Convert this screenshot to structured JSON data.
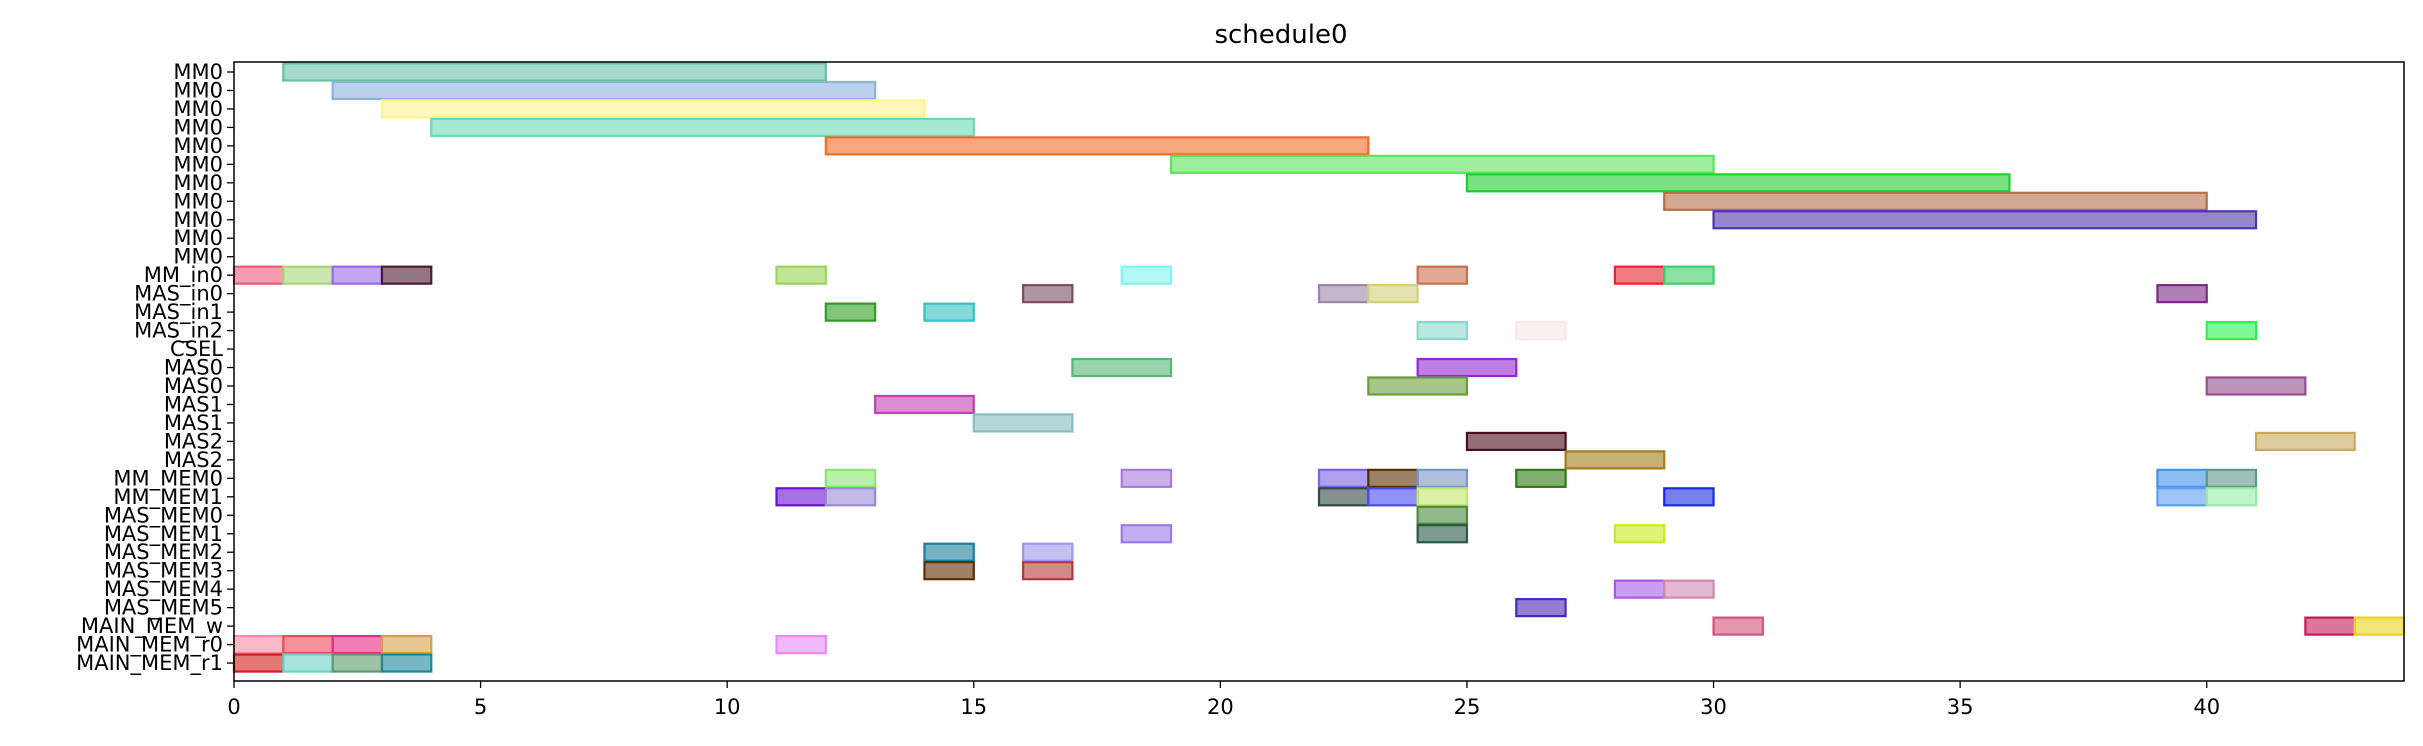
{
  "chart_data": {
    "type": "gantt",
    "title": "schedule0",
    "xlabel": "",
    "ylabel": "",
    "xlim": [
      0,
      44
    ],
    "x_ticks": [
      0,
      5,
      10,
      15,
      20,
      25,
      30,
      35,
      40
    ],
    "grid": false,
    "rows": [
      "MM0",
      "MM0",
      "MM0",
      "MM0",
      "MM0",
      "MM0",
      "MM0",
      "MM0",
      "MM0",
      "MM0",
      "MM0",
      "MM_in0",
      "MAS_in0",
      "MAS_in1",
      "MAS_in2",
      "CSEL",
      "MAS0",
      "MAS0",
      "MAS1",
      "MAS1",
      "MAS2",
      "MAS2",
      "MM_MEM0",
      "MM_MEM1",
      "MAS_MEM0",
      "MAS_MEM1",
      "MAS_MEM2",
      "MAS_MEM3",
      "MAS_MEM4",
      "MAS_MEM5",
      "MAIN_MEM_w",
      "MAIN_MEM_r0",
      "MAIN_MEM_r1"
    ],
    "tasks": [
      {
        "row": 0,
        "start": 1,
        "end": 12,
        "color": "#66c2a5"
      },
      {
        "row": 1,
        "start": 2,
        "end": 13,
        "color": "#8db0dc"
      },
      {
        "row": 2,
        "start": 3,
        "end": 14,
        "color": "#fff48c"
      },
      {
        "row": 3,
        "start": 4,
        "end": 15,
        "color": "#6cd8b4"
      },
      {
        "row": 4,
        "start": 12,
        "end": 23,
        "color": "#f46d24"
      },
      {
        "row": 5,
        "start": 19,
        "end": 30,
        "color": "#5be35b"
      },
      {
        "row": 6,
        "start": 25,
        "end": 36,
        "color": "#22cf32"
      },
      {
        "row": 7,
        "start": 29,
        "end": 40,
        "color": "#b5704a"
      },
      {
        "row": 8,
        "start": 30,
        "end": 41,
        "color": "#4e37a8"
      },
      {
        "row": 11,
        "start": 0,
        "end": 1,
        "color": "#ee5a7c"
      },
      {
        "row": 11,
        "start": 1,
        "end": 2,
        "color": "#a9d679"
      },
      {
        "row": 11,
        "start": 2,
        "end": 3,
        "color": "#9a6ae6"
      },
      {
        "row": 11,
        "start": 3,
        "end": 4,
        "color": "#4a1a30"
      },
      {
        "row": 11,
        "start": 11,
        "end": 12,
        "color": "#9ad45a"
      },
      {
        "row": 11,
        "start": 18,
        "end": 19,
        "color": "#7ef4f4"
      },
      {
        "row": 11,
        "start": 24,
        "end": 25,
        "color": "#c9704f"
      },
      {
        "row": 11,
        "start": 28,
        "end": 29,
        "color": "#e6242e"
      },
      {
        "row": 11,
        "start": 29,
        "end": 30,
        "color": "#3ecf6a"
      },
      {
        "row": 12,
        "start": 16,
        "end": 17,
        "color": "#7a4f62"
      },
      {
        "row": 12,
        "start": 22,
        "end": 23,
        "color": "#9e86a8"
      },
      {
        "row": 12,
        "start": 23,
        "end": 24,
        "color": "#d4cf7a"
      },
      {
        "row": 12,
        "start": 39,
        "end": 40,
        "color": "#7a2a86"
      },
      {
        "row": 13,
        "start": 12,
        "end": 13,
        "color": "#2e9c22"
      },
      {
        "row": 13,
        "start": 14,
        "end": 15,
        "color": "#32c2c2"
      },
      {
        "row": 14,
        "start": 24,
        "end": 25,
        "color": "#8ad8cc"
      },
      {
        "row": 14,
        "start": 26,
        "end": 27,
        "color": "#fbe6ea"
      },
      {
        "row": 14,
        "start": 40,
        "end": 41,
        "color": "#2ef24e"
      },
      {
        "row": 16,
        "start": 17,
        "end": 19,
        "color": "#55b779"
      },
      {
        "row": 16,
        "start": 24,
        "end": 26,
        "color": "#9628d4"
      },
      {
        "row": 17,
        "start": 23,
        "end": 25,
        "color": "#6c9c3a"
      },
      {
        "row": 17,
        "start": 40,
        "end": 42,
        "color": "#944e90"
      },
      {
        "row": 18,
        "start": 13,
        "end": 15,
        "color": "#c042b2"
      },
      {
        "row": 19,
        "start": 15,
        "end": 17,
        "color": "#86bdbd"
      },
      {
        "row": 20,
        "start": 25,
        "end": 27,
        "color": "#4a0e1e"
      },
      {
        "row": 20,
        "start": 41,
        "end": 43,
        "color": "#c8aa5a"
      },
      {
        "row": 21,
        "start": 27,
        "end": 29,
        "color": "#a27c1a"
      },
      {
        "row": 22,
        "start": 12,
        "end": 13,
        "color": "#8ae86e"
      },
      {
        "row": 22,
        "start": 18,
        "end": 19,
        "color": "#a97ada"
      },
      {
        "row": 22,
        "start": 22,
        "end": 23,
        "color": "#7a62e4"
      },
      {
        "row": 22,
        "start": 23,
        "end": 24,
        "color": "#5a2e00"
      },
      {
        "row": 22,
        "start": 24,
        "end": 25,
        "color": "#7a96c8"
      },
      {
        "row": 22,
        "start": 26,
        "end": 27,
        "color": "#2e7a10"
      },
      {
        "row": 22,
        "start": 39,
        "end": 40,
        "color": "#4494ea"
      },
      {
        "row": 22,
        "start": 40,
        "end": 41,
        "color": "#60988c"
      },
      {
        "row": 23,
        "start": 11,
        "end": 12,
        "color": "#6a12d4"
      },
      {
        "row": 23,
        "start": 12,
        "end": 13,
        "color": "#9a8ad4"
      },
      {
        "row": 23,
        "start": 22,
        "end": 23,
        "color": "#324a44"
      },
      {
        "row": 23,
        "start": 23,
        "end": 24,
        "color": "#4a4af4"
      },
      {
        "row": 23,
        "start": 24,
        "end": 25,
        "color": "#c2e66a"
      },
      {
        "row": 23,
        "start": 29,
        "end": 30,
        "color": "#1a2ae0"
      },
      {
        "row": 23,
        "start": 39,
        "end": 40,
        "color": "#5e9ef0"
      },
      {
        "row": 23,
        "start": 40,
        "end": 41,
        "color": "#96eea6"
      },
      {
        "row": 24,
        "start": 24,
        "end": 25,
        "color": "#4a8a3a"
      },
      {
        "row": 25,
        "start": 18,
        "end": 19,
        "color": "#9a7aea"
      },
      {
        "row": 25,
        "start": 24,
        "end": 25,
        "color": "#2a5a4a"
      },
      {
        "row": 25,
        "start": 28,
        "end": 29,
        "color": "#c8ea22"
      },
      {
        "row": 26,
        "start": 14,
        "end": 15,
        "color": "#1a7e9a"
      },
      {
        "row": 26,
        "start": 16,
        "end": 17,
        "color": "#9a9aea"
      },
      {
        "row": 27,
        "start": 14,
        "end": 15,
        "color": "#5e2e00"
      },
      {
        "row": 27,
        "start": 16,
        "end": 17,
        "color": "#b23a3a"
      },
      {
        "row": 28,
        "start": 28,
        "end": 29,
        "color": "#a65aea"
      },
      {
        "row": 28,
        "start": 29,
        "end": 30,
        "color": "#d08ab2"
      },
      {
        "row": 29,
        "start": 26,
        "end": 27,
        "color": "#4a2ab8"
      },
      {
        "row": 30,
        "start": 30,
        "end": 31,
        "color": "#d4527a"
      },
      {
        "row": 30,
        "start": 42,
        "end": 43,
        "color": "#c41a5a"
      },
      {
        "row": 30,
        "start": 43,
        "end": 44,
        "color": "#e8d41a"
      },
      {
        "row": 31,
        "start": 0,
        "end": 1,
        "color": "#f68aa4"
      },
      {
        "row": 31,
        "start": 1,
        "end": 2,
        "color": "#f04a5a"
      },
      {
        "row": 31,
        "start": 2,
        "end": 3,
        "color": "#e82a86"
      },
      {
        "row": 31,
        "start": 3,
        "end": 4,
        "color": "#d8a04a"
      },
      {
        "row": 31,
        "start": 11,
        "end": 12,
        "color": "#e68af4"
      },
      {
        "row": 32,
        "start": 0,
        "end": 1,
        "color": "#d41a1a"
      },
      {
        "row": 32,
        "start": 1,
        "end": 2,
        "color": "#6ad2c6"
      },
      {
        "row": 32,
        "start": 2,
        "end": 3,
        "color": "#5e9a6a"
      },
      {
        "row": 32,
        "start": 3,
        "end": 4,
        "color": "#1a8a9a"
      }
    ]
  }
}
